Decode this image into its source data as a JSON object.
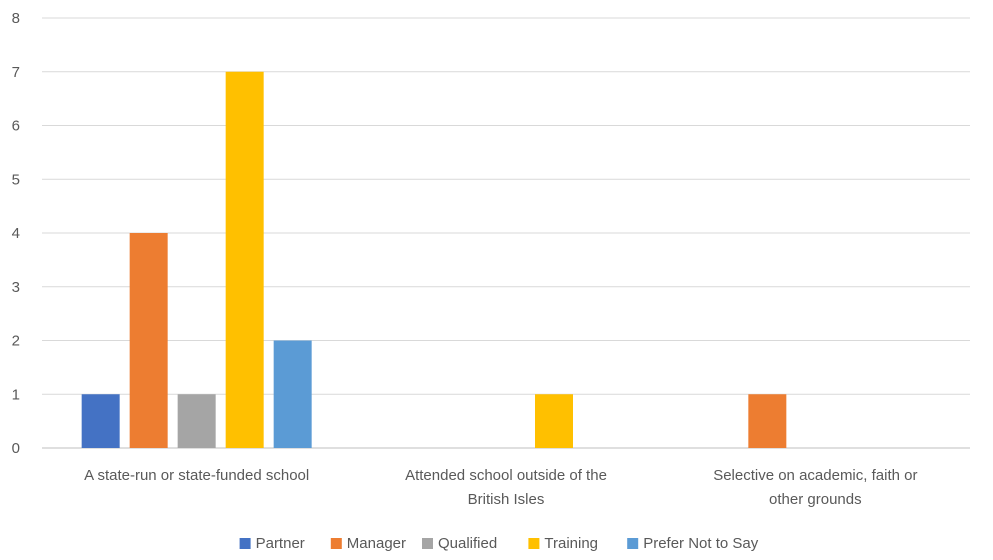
{
  "chart_data": {
    "type": "bar",
    "title": "",
    "xlabel": "",
    "ylabel": "",
    "ylim": [
      0,
      8
    ],
    "yticks": [
      0,
      1,
      2,
      3,
      4,
      5,
      6,
      7,
      8
    ],
    "grid": true,
    "legend_position": "bottom",
    "categories": [
      [
        "A state-run or state-funded school"
      ],
      [
        "Attended school outside of the",
        "British Isles"
      ],
      [
        "Selective on academic, faith or",
        "other grounds"
      ]
    ],
    "series": [
      {
        "name": "Partner",
        "color": "#4472C4",
        "values": [
          1,
          0,
          0
        ]
      },
      {
        "name": "Manager",
        "color": "#ED7D31",
        "values": [
          4,
          0,
          1
        ]
      },
      {
        "name": "Qualified",
        "color": "#A5A5A5",
        "values": [
          1,
          0,
          0
        ]
      },
      {
        "name": "Training",
        "color": "#FFC000",
        "values": [
          7,
          1,
          0
        ]
      },
      {
        "name": "Prefer Not to Say",
        "color": "#5B9BD5",
        "values": [
          2,
          0,
          0
        ]
      }
    ]
  }
}
